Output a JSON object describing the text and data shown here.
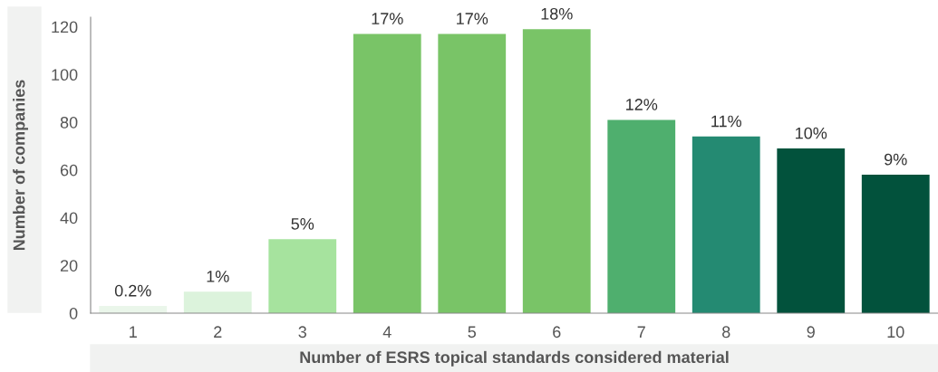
{
  "chart_data": {
    "type": "bar",
    "xlabel": "Number of ESRS topical standards considered material",
    "ylabel": "Number of companies",
    "categories": [
      "1",
      "2",
      "3",
      "4",
      "5",
      "6",
      "7",
      "8",
      "9",
      "10"
    ],
    "values": [
      3,
      9,
      31,
      117,
      117,
      119,
      81,
      74,
      69,
      58
    ],
    "colors": [
      "#eaf6ea",
      "#dcf3dc",
      "#a6e39e",
      "#79c467",
      "#79c467",
      "#79c467",
      "#4faf6e",
      "#248a72",
      "#02523c",
      "#02523c"
    ],
    "annotations": [
      {
        "text": "0.2%",
        "x": "1",
        "y": 3
      },
      {
        "text": "1%",
        "x": "2",
        "y": 9
      },
      {
        "text": "5%",
        "x": "3",
        "y": 31
      },
      {
        "text": "17%",
        "x": "4",
        "y": 117
      },
      {
        "text": "17%",
        "x": "5",
        "y": 117
      },
      {
        "text": "18%",
        "x": "6",
        "y": 119
      },
      {
        "text": "12%",
        "x": "7",
        "y": 81
      },
      {
        "text": "11%",
        "x": "8",
        "y": 74
      },
      {
        "text": "10%",
        "x": "9",
        "y": 69
      },
      {
        "text": "9%",
        "x": "10",
        "y": 58
      }
    ],
    "ylim": [
      0,
      124
    ],
    "yticks": [
      0,
      20,
      40,
      60,
      80,
      100,
      120
    ],
    "grid": false
  }
}
